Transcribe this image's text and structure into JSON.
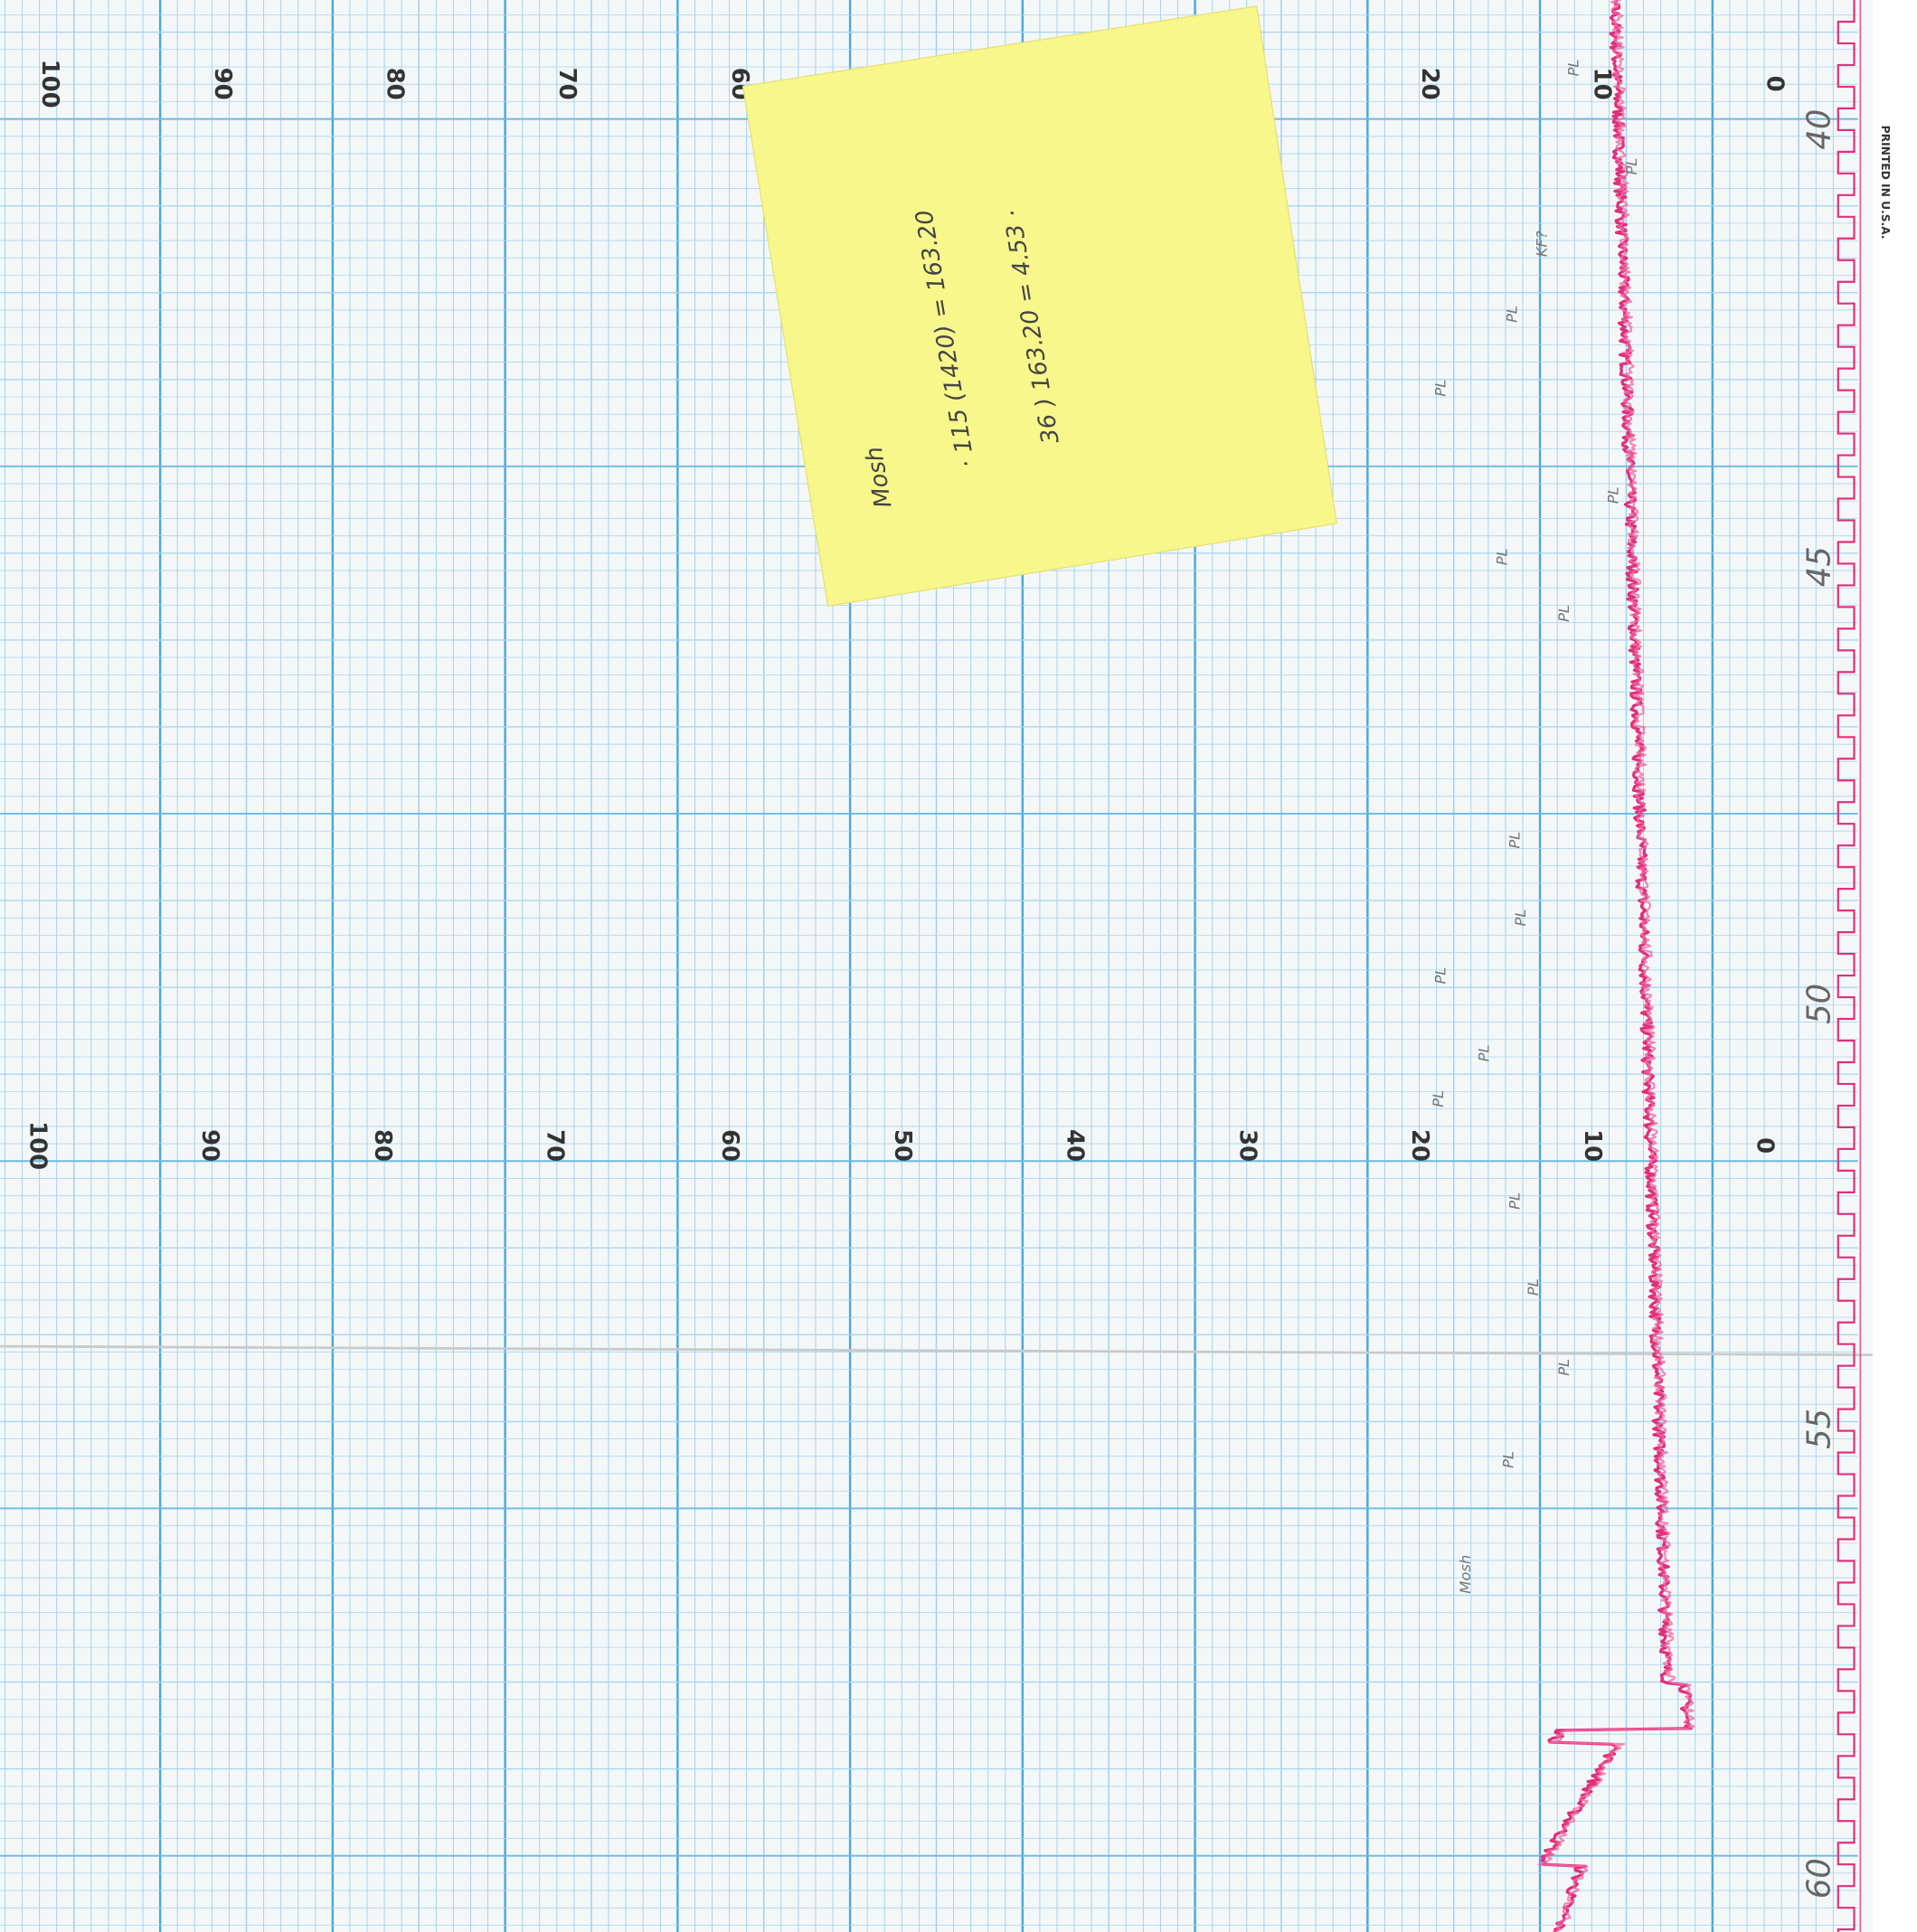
{
  "scale_top": {
    "labels": [
      "100",
      "90",
      "80",
      "70",
      "60",
      "20",
      "10",
      "0"
    ]
  },
  "scale_bottom": {
    "labels": [
      "100",
      "90",
      "80",
      "70",
      "60",
      "50",
      "40",
      "30",
      "20",
      "10",
      "0"
    ]
  },
  "imprint": "PRINTED IN U.S.A.",
  "margin_marks": [
    "40",
    "45",
    "50",
    "55",
    "60"
  ],
  "trace_notes": [
    "PL",
    "PL",
    "KF?",
    "PL",
    "PL",
    "PL",
    "PL",
    "PL",
    "PL",
    "PL",
    "PL",
    "PL",
    "PL",
    "PL",
    "PL",
    "PL",
    "PL",
    "Mosh"
  ],
  "sticky_note": {
    "lines": [
      "Mosh",
      "· 115 (1420) = 163.20",
      "36 ) 163.20 = 4.53 ·"
    ]
  }
}
